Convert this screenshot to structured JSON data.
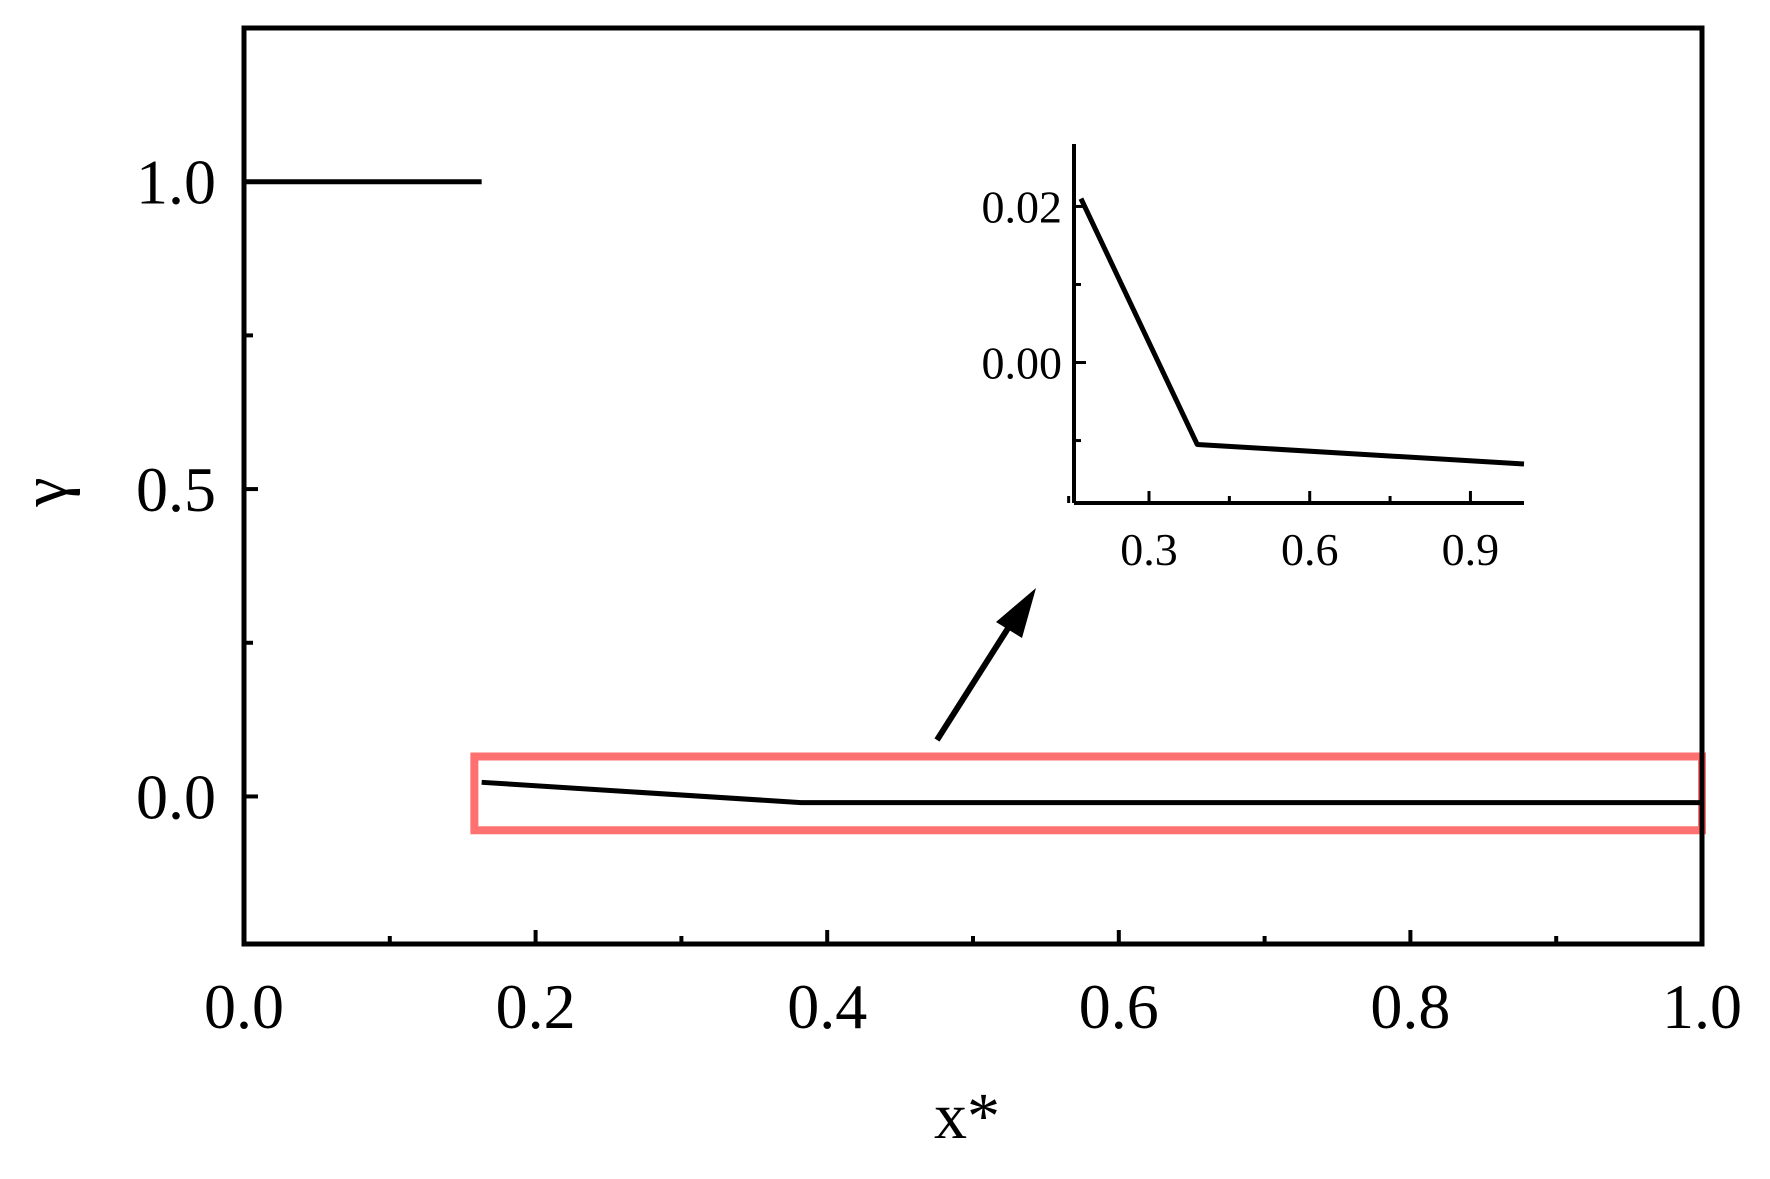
{
  "chart_data": [
    {
      "type": "line",
      "xlabel": "x*",
      "ylabel": "γ",
      "xlim": [
        0.0,
        1.0
      ],
      "ylim": [
        -0.24,
        1.25
      ],
      "x_ticks": [
        "0.0",
        "0.2",
        "0.4",
        "0.6",
        "0.8",
        "1.0"
      ],
      "y_ticks": [
        "0.0",
        "0.5",
        "1.0"
      ],
      "series": [
        {
          "x": [
            0.0,
            0.163
          ],
          "y": [
            1.0,
            1.0
          ]
        },
        {
          "x": [
            0.163,
            0.382,
            1.0
          ],
          "y": [
            0.023,
            -0.01,
            -0.01
          ]
        }
      ],
      "annotations": {
        "zoom_box": {
          "x": [
            0.158,
            1.0
          ],
          "y": [
            -0.055,
            0.065
          ],
          "color": "#ff7070"
        },
        "arrow": "points from zoom box to inset"
      },
      "grid": false
    },
    {
      "type": "line",
      "role": "inset",
      "xlim": [
        0.16,
        1.0
      ],
      "ylim": [
        -0.018,
        0.028
      ],
      "x_ticks": [
        "0.3",
        "0.6",
        "0.9"
      ],
      "y_ticks": [
        "0.00",
        "0.02"
      ],
      "series": [
        {
          "x": [
            0.173,
            0.39,
            1.0
          ],
          "y": [
            0.021,
            -0.0105,
            -0.013
          ]
        }
      ]
    }
  ]
}
